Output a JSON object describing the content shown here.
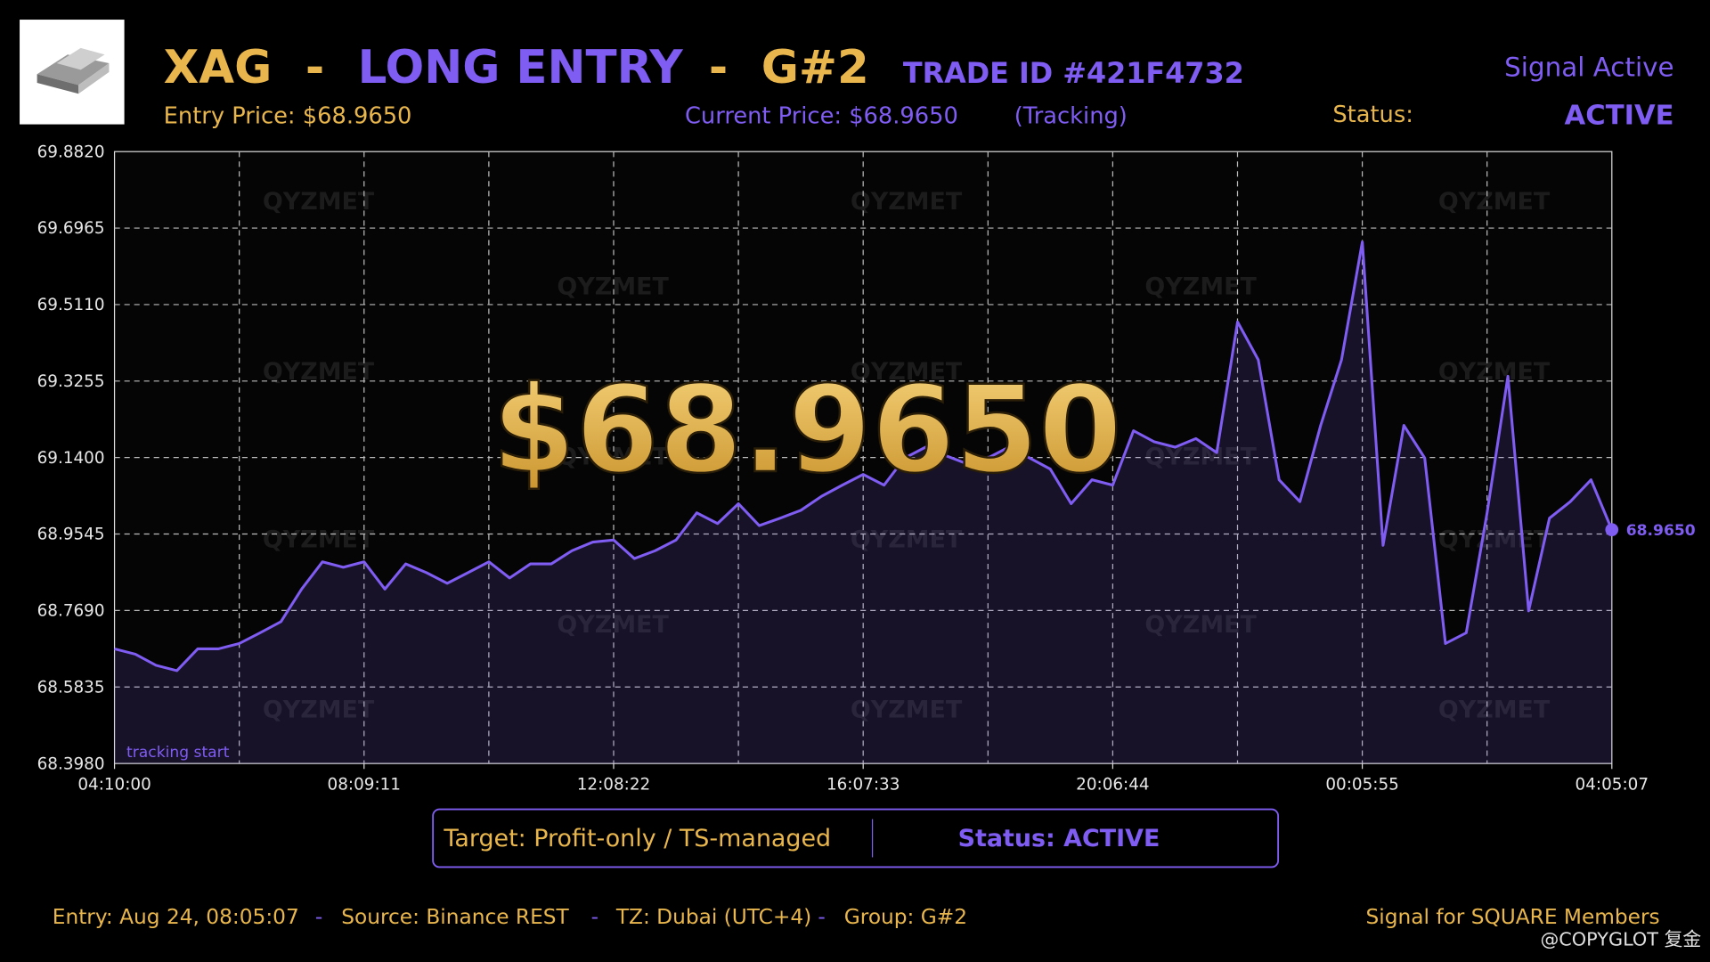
{
  "header": {
    "symbol": "XAG",
    "separator": "-",
    "direction": "LONG ENTRY",
    "group": "G#2",
    "trade_id": "TRADE ID #421F4732",
    "signal": "Signal Active",
    "entry_price": "Entry Price: $68.9650",
    "current_price": "Current Price: $68.9650",
    "tracking": "(Tracking)",
    "status_label": "Status:",
    "status_value": "ACTIVE"
  },
  "chart_data": {
    "type": "line",
    "color": "#7f5cf2",
    "watermark": "QYZMET",
    "annotation": "tracking start",
    "overlay_price": "$68.9650",
    "categories": [
      "04:10:00",
      null,
      null,
      null,
      null,
      null,
      null,
      null,
      null,
      null,
      null,
      null,
      "08:09:11",
      null,
      null,
      null,
      null,
      null,
      null,
      null,
      null,
      null,
      null,
      null,
      "12:08:22",
      null,
      null,
      null,
      null,
      null,
      null,
      null,
      null,
      null,
      null,
      null,
      "16:07:33",
      null,
      null,
      null,
      null,
      null,
      null,
      null,
      null,
      null,
      null,
      null,
      "20:06:44",
      null,
      null,
      null,
      null,
      null,
      null,
      null,
      null,
      null,
      null,
      null,
      "00:05:55",
      null,
      null,
      null,
      null,
      null,
      null,
      null,
      null,
      null,
      null,
      null,
      "04:05:07"
    ],
    "values": [
      68.676,
      68.663,
      68.636,
      68.623,
      68.676,
      68.676,
      68.689,
      68.715,
      68.742,
      68.821,
      68.887,
      68.874,
      68.887,
      68.821,
      68.882,
      68.861,
      68.835,
      68.861,
      68.887,
      68.848,
      68.882,
      68.882,
      68.914,
      68.935,
      68.94,
      68.895,
      68.914,
      68.94,
      69.006,
      68.98,
      69.028,
      68.975,
      68.993,
      69.012,
      69.046,
      69.073,
      69.099,
      69.073,
      69.139,
      69.165,
      69.144,
      69.125,
      69.139,
      69.165,
      69.139,
      69.112,
      69.028,
      69.086,
      69.073,
      69.205,
      69.178,
      69.165,
      69.186,
      69.152,
      69.469,
      69.377,
      69.086,
      69.033,
      69.218,
      69.377,
      69.663,
      68.927,
      69.218,
      69.139,
      68.689,
      68.715,
      69.006,
      69.337,
      68.768,
      68.993,
      69.033,
      69.086,
      68.965
    ],
    "value_labels": [
      null,
      null,
      null,
      null,
      null,
      null,
      null,
      null,
      null,
      null,
      null,
      null,
      null,
      null,
      null,
      null,
      null,
      null,
      null,
      null,
      null,
      null,
      null,
      null,
      null,
      null,
      null,
      null,
      null,
      null,
      null,
      null,
      null,
      null,
      null,
      null,
      null,
      null,
      null,
      null,
      null,
      null,
      null,
      null,
      null,
      null,
      null,
      null,
      null,
      null,
      null,
      null,
      null,
      null,
      null,
      null,
      null,
      null,
      null,
      null,
      null,
      null,
      null,
      null,
      null,
      null,
      null,
      null,
      null,
      null,
      null,
      null,
      "68.9650"
    ],
    "ylim": [
      68.398,
      69.882
    ],
    "yticks": [
      {
        "value": 68.398,
        "label": "68.3980"
      },
      {
        "value": 68.5835,
        "label": "68.5835"
      },
      {
        "value": 68.769,
        "label": "68.7690"
      },
      {
        "value": 68.9545,
        "label": "68.9545"
      },
      {
        "value": 69.14,
        "label": "69.1400"
      },
      {
        "value": 69.3255,
        "label": "69.3255"
      },
      {
        "value": 69.511,
        "label": "69.5110"
      },
      {
        "value": 69.6965,
        "label": "69.6965"
      },
      {
        "value": 69.882,
        "label": "69.8820"
      }
    ],
    "grid": true
  },
  "info_box": {
    "target": "Target: Profit-only / TS-managed",
    "status": "Status: ACTIVE"
  },
  "footer": {
    "entry": "Entry: Aug 24, 08:05:07",
    "separator": "-",
    "source": "Source: Binance REST",
    "tz": "TZ: Dubai (UTC+4)",
    "group": "Group: G#2",
    "members": "Signal for SQUARE Members",
    "credit": "@COPYGLOT 复金"
  }
}
